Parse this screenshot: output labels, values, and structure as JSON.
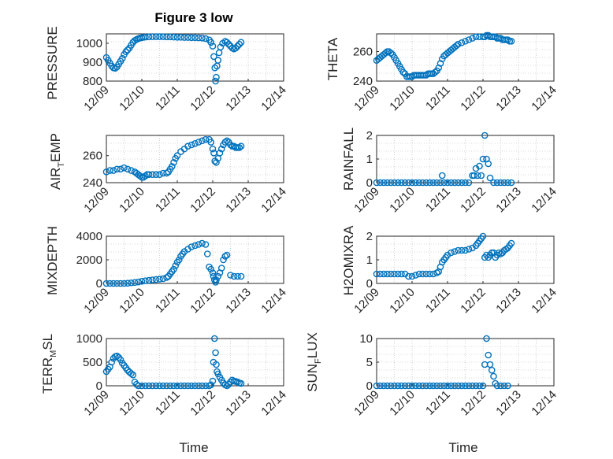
{
  "figure_title": "Figure 3 low",
  "marker_color": "#0072bd",
  "xlabel": "Time",
  "x_tick_labels": [
    "12/09",
    "12/10",
    "12/11",
    "12/12",
    "12/13",
    "12/14"
  ],
  "chart_data": [
    {
      "type": "scatter",
      "ylabel": "PRESSURE",
      "xlim": [
        0,
        5
      ],
      "ylim": [
        800,
        1050
      ],
      "yticks": [
        800,
        900,
        1000
      ],
      "grid": true,
      "x": [
        0.0,
        0.05,
        0.1,
        0.15,
        0.2,
        0.25,
        0.3,
        0.35,
        0.4,
        0.45,
        0.5,
        0.55,
        0.6,
        0.65,
        0.7,
        0.75,
        0.8,
        0.85,
        0.9,
        0.95,
        1.0,
        1.05,
        1.1,
        1.2,
        1.3,
        1.4,
        1.5,
        1.6,
        1.7,
        1.8,
        1.9,
        2.0,
        2.1,
        2.2,
        2.3,
        2.4,
        2.5,
        2.6,
        2.7,
        2.8,
        2.9,
        2.95,
        3.0,
        3.03,
        3.06,
        3.08,
        3.1,
        3.12,
        3.15,
        3.18,
        3.22,
        3.28,
        3.35,
        3.4,
        3.45,
        3.5,
        3.55,
        3.6,
        3.65,
        3.7,
        3.75,
        3.8
      ],
      "y": [
        925,
        910,
        895,
        880,
        870,
        868,
        875,
        890,
        905,
        920,
        940,
        955,
        965,
        975,
        990,
        1005,
        1015,
        1020,
        1025,
        1028,
        1030,
        1032,
        1033,
        1034,
        1035,
        1035,
        1035,
        1035,
        1034,
        1034,
        1033,
        1032,
        1032,
        1031,
        1031,
        1030,
        1030,
        1029,
        1028,
        1025,
        1018,
        1005,
        985,
        930,
        870,
        800,
        820,
        880,
        910,
        950,
        980,
        1000,
        1010,
        1005,
        995,
        985,
        975,
        970,
        975,
        985,
        995,
        1005
      ]
    },
    {
      "type": "scatter",
      "ylabel": "THETA",
      "xlim": [
        0,
        5
      ],
      "ylim": [
        240,
        272
      ],
      "yticks": [
        240,
        260
      ],
      "grid": true,
      "x": [
        0.0,
        0.05,
        0.1,
        0.15,
        0.2,
        0.25,
        0.3,
        0.35,
        0.4,
        0.45,
        0.5,
        0.55,
        0.6,
        0.65,
        0.7,
        0.75,
        0.8,
        0.85,
        0.9,
        0.95,
        1.0,
        1.05,
        1.1,
        1.15,
        1.2,
        1.25,
        1.3,
        1.35,
        1.4,
        1.45,
        1.5,
        1.55,
        1.6,
        1.65,
        1.7,
        1.75,
        1.8,
        1.85,
        1.9,
        1.95,
        2.0,
        2.05,
        2.1,
        2.15,
        2.2,
        2.25,
        2.3,
        2.4,
        2.5,
        2.6,
        2.7,
        2.8,
        2.9,
        3.0,
        3.05,
        3.1,
        3.15,
        3.2,
        3.25,
        3.3,
        3.35,
        3.4,
        3.45,
        3.5,
        3.55,
        3.6,
        3.65,
        3.7,
        3.75,
        3.8
      ],
      "y": [
        254,
        255,
        256,
        257,
        258,
        259,
        260,
        260,
        259,
        258,
        256,
        254,
        252,
        250,
        248,
        246,
        245,
        243,
        243,
        243,
        243,
        244,
        244,
        244,
        244,
        244,
        244,
        244,
        244,
        245,
        245,
        245,
        245,
        246,
        247,
        249,
        252,
        255,
        257,
        258,
        259,
        260,
        261,
        262,
        263,
        264,
        265,
        266,
        267,
        268,
        269,
        270,
        270,
        270,
        270,
        271,
        271,
        270,
        270,
        270,
        270,
        269,
        269,
        269,
        268,
        268,
        268,
        268,
        267,
        267
      ]
    },
    {
      "type": "scatter",
      "ylabel": "AIR_TEMP",
      "xlim": [
        0,
        5
      ],
      "ylim": [
        240,
        275
      ],
      "yticks": [
        240,
        260
      ],
      "grid": true,
      "x": [
        0.0,
        0.1,
        0.2,
        0.3,
        0.4,
        0.5,
        0.6,
        0.7,
        0.8,
        0.85,
        0.9,
        0.95,
        1.0,
        1.05,
        1.1,
        1.15,
        1.2,
        1.3,
        1.4,
        1.5,
        1.6,
        1.7,
        1.75,
        1.8,
        1.85,
        1.9,
        1.95,
        2.0,
        2.1,
        2.2,
        2.3,
        2.4,
        2.5,
        2.6,
        2.7,
        2.8,
        2.9,
        2.95,
        3.0,
        3.03,
        3.06,
        3.1,
        3.15,
        3.2,
        3.25,
        3.3,
        3.35,
        3.4,
        3.45,
        3.5,
        3.55,
        3.6,
        3.65,
        3.7,
        3.75,
        3.8
      ],
      "y": [
        248,
        249,
        249,
        250,
        250,
        251,
        250,
        249,
        248,
        247,
        246,
        245,
        244,
        244,
        245,
        246,
        246,
        246,
        246,
        246,
        247,
        247,
        248,
        250,
        252,
        255,
        258,
        260,
        263,
        265,
        267,
        268,
        269,
        270,
        271,
        272,
        272,
        270,
        265,
        262,
        256,
        255,
        258,
        262,
        265,
        268,
        270,
        271,
        270,
        268,
        267,
        267,
        266,
        266,
        266,
        267
      ]
    },
    {
      "type": "scatter",
      "ylabel": "RAINFALL",
      "xlim": [
        0,
        5
      ],
      "ylim": [
        0,
        2
      ],
      "yticks": [
        0,
        1,
        2
      ],
      "grid": true,
      "x": [
        0.0,
        0.1,
        0.2,
        0.3,
        0.4,
        0.5,
        0.6,
        0.7,
        0.8,
        0.9,
        1.0,
        1.1,
        1.2,
        1.3,
        1.4,
        1.5,
        1.6,
        1.7,
        1.8,
        1.85,
        1.9,
        2.0,
        2.1,
        2.2,
        2.3,
        2.4,
        2.5,
        2.6,
        2.7,
        2.75,
        2.8,
        2.85,
        2.9,
        2.95,
        3.0,
        3.05,
        3.1,
        3.15,
        3.2,
        3.3,
        3.4,
        3.5,
        3.6,
        3.7,
        3.8
      ],
      "y": [
        0,
        0,
        0,
        0,
        0,
        0,
        0,
        0,
        0,
        0,
        0,
        0,
        0,
        0,
        0,
        0,
        0,
        0,
        0,
        0.3,
        0,
        0,
        0,
        0,
        0,
        0,
        0,
        0,
        0.3,
        0.3,
        0.6,
        0.3,
        0.7,
        0.3,
        1.0,
        2.0,
        1.0,
        0.8,
        0.2,
        0,
        0,
        0,
        0,
        0,
        0
      ]
    },
    {
      "type": "scatter",
      "ylabel": "MIXDEPTH",
      "xlim": [
        0,
        5
      ],
      "ylim": [
        0,
        4000
      ],
      "yticks": [
        0,
        2000,
        4000
      ],
      "grid": true,
      "x": [
        0.0,
        0.1,
        0.2,
        0.3,
        0.4,
        0.5,
        0.6,
        0.7,
        0.8,
        0.9,
        1.0,
        1.1,
        1.2,
        1.3,
        1.4,
        1.5,
        1.6,
        1.7,
        1.75,
        1.8,
        1.85,
        1.9,
        1.95,
        2.0,
        2.05,
        2.1,
        2.15,
        2.2,
        2.3,
        2.4,
        2.5,
        2.6,
        2.7,
        2.8,
        2.85,
        2.9,
        2.95,
        3.0,
        3.02,
        3.05,
        3.08,
        3.1,
        3.15,
        3.2,
        3.25,
        3.3,
        3.35,
        3.4,
        3.5,
        3.6,
        3.7,
        3.8
      ],
      "y": [
        0,
        0,
        0,
        0,
        0,
        0,
        20,
        50,
        80,
        120,
        180,
        220,
        260,
        300,
        330,
        360,
        400,
        500,
        600,
        800,
        1000,
        1200,
        1500,
        1800,
        2000,
        2300,
        2500,
        2700,
        2900,
        3100,
        3200,
        3300,
        3400,
        3300,
        2500,
        1400,
        1200,
        900,
        600,
        300,
        100,
        300,
        600,
        900,
        1300,
        2000,
        2300,
        2400,
        700,
        600,
        600,
        600
      ]
    },
    {
      "type": "scatter",
      "ylabel": "H2OMIXRA",
      "xlim": [
        0,
        5
      ],
      "ylim": [
        0,
        2
      ],
      "yticks": [
        0,
        1,
        2
      ],
      "grid": true,
      "x": [
        0.0,
        0.1,
        0.2,
        0.3,
        0.4,
        0.5,
        0.6,
        0.7,
        0.8,
        0.9,
        1.0,
        1.1,
        1.2,
        1.3,
        1.4,
        1.5,
        1.6,
        1.7,
        1.75,
        1.8,
        1.85,
        1.9,
        1.95,
        2.0,
        2.1,
        2.2,
        2.3,
        2.4,
        2.5,
        2.6,
        2.7,
        2.8,
        2.85,
        2.9,
        2.95,
        3.0,
        3.05,
        3.1,
        3.15,
        3.2,
        3.25,
        3.3,
        3.35,
        3.4,
        3.45,
        3.5,
        3.55,
        3.6,
        3.65,
        3.7,
        3.75,
        3.8
      ],
      "y": [
        0.4,
        0.4,
        0.4,
        0.4,
        0.4,
        0.4,
        0.4,
        0.4,
        0.4,
        0.3,
        0.3,
        0.35,
        0.4,
        0.4,
        0.4,
        0.4,
        0.4,
        0.45,
        0.5,
        0.7,
        0.9,
        1.0,
        1.1,
        1.2,
        1.3,
        1.35,
        1.4,
        1.4,
        1.4,
        1.45,
        1.5,
        1.6,
        1.7,
        1.8,
        1.9,
        2.0,
        1.1,
        1.2,
        1.1,
        1.2,
        1.3,
        1.3,
        1.1,
        1.2,
        1.3,
        1.25,
        1.3,
        1.4,
        1.45,
        1.5,
        1.6,
        1.7
      ]
    },
    {
      "type": "scatter",
      "ylabel": "TERR_MSL",
      "xlim": [
        0,
        5
      ],
      "ylim": [
        0,
        1000
      ],
      "yticks": [
        0,
        500,
        1000
      ],
      "grid": true,
      "x": [
        0.0,
        0.05,
        0.1,
        0.15,
        0.2,
        0.25,
        0.3,
        0.35,
        0.4,
        0.45,
        0.5,
        0.55,
        0.6,
        0.65,
        0.7,
        0.75,
        0.8,
        0.85,
        0.9,
        1.0,
        1.1,
        1.2,
        1.3,
        1.4,
        1.5,
        1.6,
        1.7,
        1.8,
        1.9,
        2.0,
        2.1,
        2.2,
        2.3,
        2.4,
        2.5,
        2.6,
        2.7,
        2.8,
        2.9,
        2.95,
        3.0,
        3.02,
        3.05,
        3.08,
        3.1,
        3.12,
        3.15,
        3.2,
        3.25,
        3.3,
        3.35,
        3.4,
        3.45,
        3.5,
        3.55,
        3.6,
        3.65,
        3.7,
        3.75,
        3.8
      ],
      "y": [
        300,
        350,
        400,
        500,
        580,
        620,
        630,
        600,
        550,
        480,
        430,
        380,
        330,
        290,
        260,
        230,
        80,
        30,
        0,
        0,
        0,
        0,
        0,
        0,
        0,
        0,
        0,
        0,
        0,
        0,
        0,
        0,
        0,
        0,
        0,
        0,
        0,
        0,
        0,
        20,
        100,
        500,
        1000,
        700,
        450,
        300,
        250,
        180,
        120,
        60,
        20,
        0,
        30,
        80,
        120,
        100,
        90,
        80,
        60,
        50
      ]
    },
    {
      "type": "scatter",
      "ylabel": "SUN_FLUX",
      "xlim": [
        0,
        5
      ],
      "ylim": [
        0,
        10
      ],
      "yticks": [
        0,
        5,
        10
      ],
      "grid": true,
      "x": [
        0.0,
        0.1,
        0.2,
        0.3,
        0.4,
        0.5,
        0.6,
        0.7,
        0.8,
        0.9,
        1.0,
        1.1,
        1.2,
        1.3,
        1.4,
        1.5,
        1.6,
        1.7,
        1.8,
        1.9,
        2.0,
        2.1,
        2.2,
        2.3,
        2.4,
        2.5,
        2.6,
        2.7,
        2.8,
        2.9,
        3.0,
        3.05,
        3.1,
        3.15,
        3.2,
        3.25,
        3.3,
        3.35,
        3.4,
        3.5,
        3.6,
        3.7
      ],
      "y": [
        0,
        0,
        0,
        0,
        0,
        0,
        0,
        0,
        0,
        0,
        0,
        0,
        0,
        0,
        0,
        0,
        0,
        0,
        0,
        0,
        0,
        0,
        0,
        0,
        0,
        0,
        0,
        0,
        0,
        0,
        0,
        4.5,
        10,
        6.5,
        4.5,
        3.3,
        2.0,
        0.5,
        0,
        0,
        0,
        0
      ]
    }
  ]
}
